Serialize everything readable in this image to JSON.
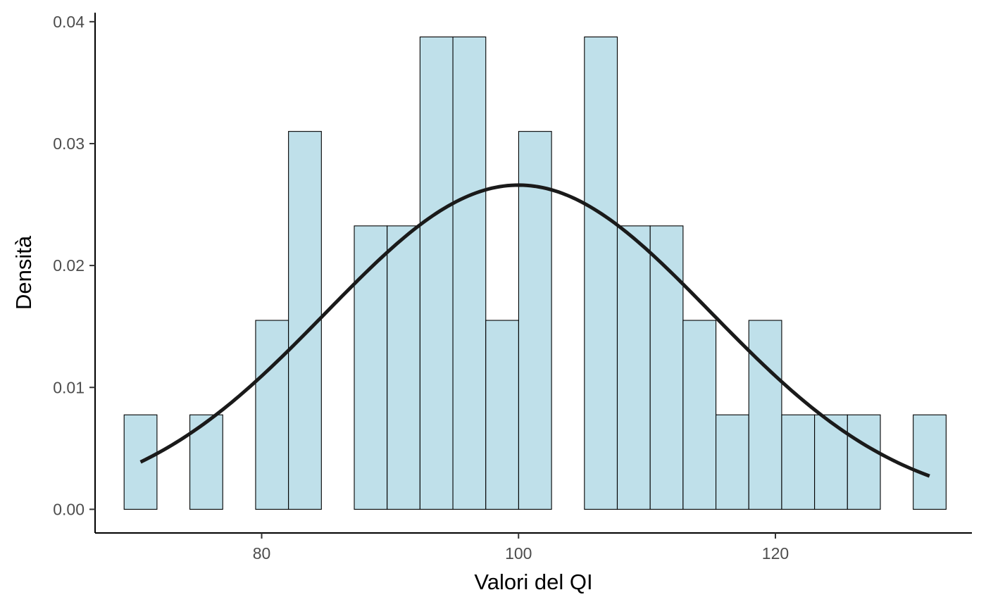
{
  "chart_data": {
    "type": "bar",
    "title": "",
    "xlabel": "Valori del QI",
    "ylabel": "Densità",
    "xlim": [
      67.03,
      135.3
    ],
    "ylim": [
      -0.00194,
      0.04074
    ],
    "bin_width": 2.56,
    "bins": [
      {
        "x0": 69.29,
        "x1": 71.85,
        "density": 0.00775
      },
      {
        "x0": 71.85,
        "x1": 74.41,
        "density": 0.0
      },
      {
        "x0": 74.41,
        "x1": 76.97,
        "density": 0.00775
      },
      {
        "x0": 76.97,
        "x1": 79.53,
        "density": 0.0
      },
      {
        "x0": 79.53,
        "x1": 82.09,
        "density": 0.0155
      },
      {
        "x0": 82.09,
        "x1": 84.65,
        "density": 0.031
      },
      {
        "x0": 84.65,
        "x1": 87.21,
        "density": 0.0
      },
      {
        "x0": 87.21,
        "x1": 89.77,
        "density": 0.02325
      },
      {
        "x0": 89.77,
        "x1": 92.33,
        "density": 0.02325
      },
      {
        "x0": 92.33,
        "x1": 94.89,
        "density": 0.03875
      },
      {
        "x0": 94.89,
        "x1": 97.45,
        "density": 0.03875
      },
      {
        "x0": 97.45,
        "x1": 100.01,
        "density": 0.0155
      },
      {
        "x0": 100.01,
        "x1": 102.57,
        "density": 0.031
      },
      {
        "x0": 102.57,
        "x1": 105.13,
        "density": 0.0
      },
      {
        "x0": 105.13,
        "x1": 107.69,
        "density": 0.03875
      },
      {
        "x0": 107.69,
        "x1": 110.25,
        "density": 0.02325
      },
      {
        "x0": 110.25,
        "x1": 112.81,
        "density": 0.02325
      },
      {
        "x0": 112.81,
        "x1": 115.37,
        "density": 0.0155
      },
      {
        "x0": 115.37,
        "x1": 117.93,
        "density": 0.00775
      },
      {
        "x0": 117.93,
        "x1": 120.49,
        "density": 0.0155
      },
      {
        "x0": 120.49,
        "x1": 123.05,
        "density": 0.00775
      },
      {
        "x0": 123.05,
        "x1": 125.61,
        "density": 0.00775
      },
      {
        "x0": 125.61,
        "x1": 128.17,
        "density": 0.00775
      },
      {
        "x0": 128.17,
        "x1": 130.73,
        "density": 0.0
      },
      {
        "x0": 130.73,
        "x1": 133.29,
        "density": 0.00775
      }
    ],
    "curve": {
      "type": "normal density",
      "mean": 100,
      "sd": 15,
      "x_range": [
        70.57,
        132.0
      ]
    },
    "x_ticks": [
      {
        "value": 80,
        "label": "80"
      },
      {
        "value": 100,
        "label": "100"
      },
      {
        "value": 120,
        "label": "120"
      }
    ],
    "y_ticks": [
      {
        "value": 0.0,
        "label": "0.00"
      },
      {
        "value": 0.01,
        "label": "0.01"
      },
      {
        "value": 0.02,
        "label": "0.02"
      },
      {
        "value": 0.03,
        "label": "0.03"
      },
      {
        "value": 0.04,
        "label": "0.04"
      }
    ],
    "grid": false,
    "legend": "none",
    "colors": {
      "bar_fill": "#bfe0ea",
      "bar_stroke": "#000000",
      "curve": "#1a1a1a",
      "axis": "#000000",
      "tick_label": "#4d4d4d"
    }
  }
}
